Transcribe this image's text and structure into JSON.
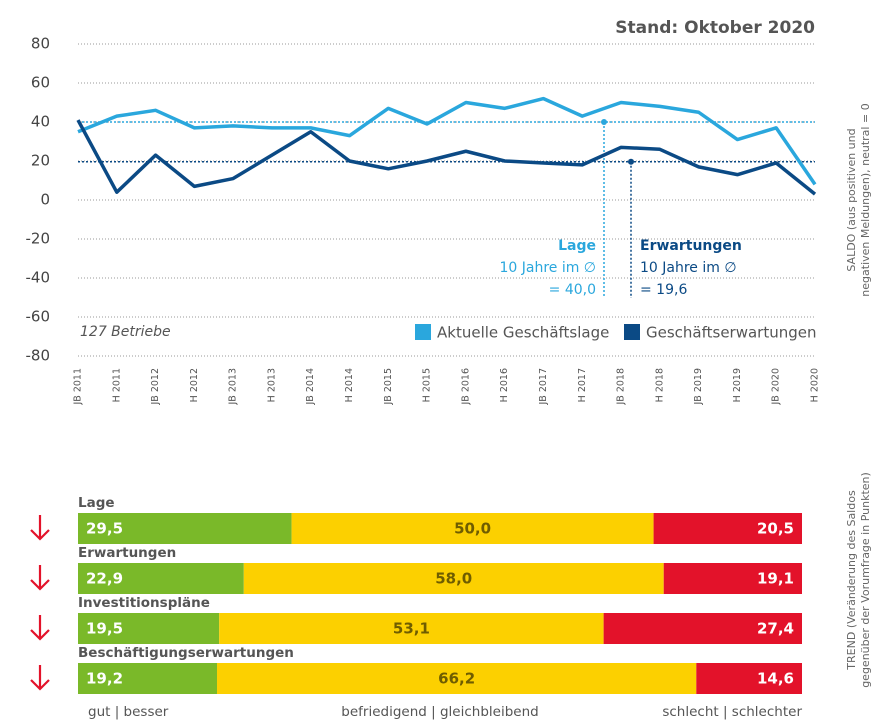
{
  "chart_data": [
    {
      "type": "line",
      "title": "Stand: Oktober 2020",
      "note": "127 Betriebe",
      "y_axis_label": [
        "SALDO (aus positiven und",
        "negativen Meldungen), neutral = 0"
      ],
      "categories": [
        "JB 2011",
        "H 2011",
        "JB 2012",
        "H 2012",
        "JB 2013",
        "H 2013",
        "JB 2014",
        "H 2014",
        "JB 2015",
        "H 2015",
        "JB 2016",
        "H 2016",
        "JB 2017",
        "H 2017",
        "JB 2018",
        "H 2018",
        "JB 2019",
        "H 2019",
        "JB 2020",
        "H 2020"
      ],
      "series": [
        {
          "name": "Aktuelle Geschäftslage",
          "color": "#2aa7dd",
          "values": [
            35,
            43,
            46,
            37,
            38,
            37,
            37,
            33,
            47,
            39,
            50,
            47,
            52,
            43,
            50,
            48,
            45,
            31,
            37,
            8
          ]
        },
        {
          "name": "Geschäftserwartungen",
          "color": "#0b4a85",
          "values": [
            41,
            4,
            23,
            7,
            11,
            23,
            35,
            20,
            16,
            20,
            25,
            20,
            19,
            18,
            27,
            26,
            17,
            13,
            19,
            3
          ]
        }
      ],
      "annotations": [
        {
          "title": "Lage",
          "lines": [
            "10 Jahre im ∅",
            "= 40,0"
          ],
          "value": 40,
          "color": "#2aa7dd"
        },
        {
          "title": "Erwartungen",
          "lines": [
            "10 Jahre im ∅",
            "= 19,6"
          ],
          "value": 19.6,
          "color": "#0b4a85"
        }
      ],
      "ylim": [
        -80,
        80
      ],
      "yticks": [
        -80,
        -60,
        -40,
        -20,
        0,
        20,
        40,
        60,
        80
      ],
      "grid": true,
      "legend": "bottom-right"
    },
    {
      "type": "stacked_bar",
      "y_axis_label": [
        "TREND (Veränderung des Saldos",
        "gegenüber der Vorumfrage in Punkten)"
      ],
      "categories": [
        "Lage",
        "Erwartungen",
        "Investitionspläne",
        "Beschäftigungserwartungen"
      ],
      "trend": [
        "down",
        "down",
        "down",
        "down"
      ],
      "xlim": [
        0,
        100
      ],
      "series": [
        {
          "name": "gut | besser",
          "color": "#7ab929",
          "values": [
            29.5,
            22.9,
            19.5,
            19.2
          ],
          "value_labels": [
            "29,5",
            "22,9",
            "19,5",
            "19,2"
          ]
        },
        {
          "name": "befriedigend | gleichbleibend",
          "color": "#fcd000",
          "values": [
            50,
            58,
            53.1,
            66.2
          ],
          "value_labels": [
            "50,0",
            "58,0",
            "53,1",
            "66,2"
          ]
        },
        {
          "name": "schlecht | schlechter",
          "color": "#e3122a",
          "values": [
            20.5,
            19.1,
            27.4,
            14.6
          ],
          "value_labels": [
            "20,5",
            "19,1",
            "27,4",
            "14,6"
          ]
        }
      ]
    }
  ]
}
